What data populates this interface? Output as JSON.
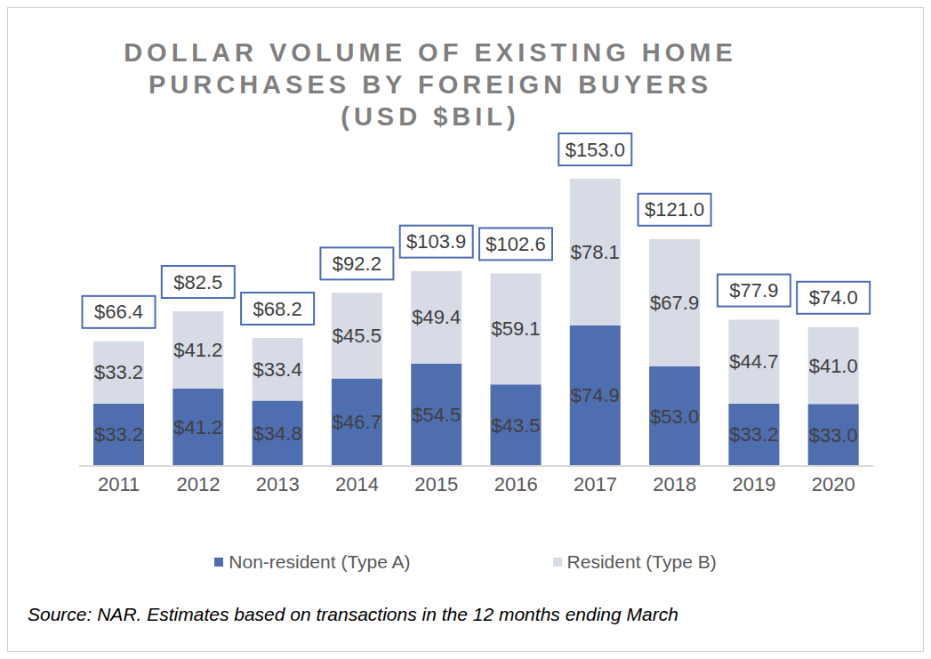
{
  "chart_data": {
    "type": "bar",
    "title": "DOLLAR VOLUME OF EXISTING HOME PURCHASES BY FOREIGN BUYERS (USD $BIL)",
    "categories": [
      "2011",
      "2012",
      "2013",
      "2014",
      "2015",
      "2016",
      "2017",
      "2018",
      "2019",
      "2020"
    ],
    "stacked": true,
    "data_labels": true,
    "tick_labels": "x",
    "legend": "bottom",
    "series": [
      {
        "name": "Non-resident (Type A)",
        "color": "#4e6eb0",
        "values": [
          33.2,
          41.2,
          34.8,
          46.7,
          54.5,
          43.5,
          74.9,
          53.0,
          33.2,
          33.0
        ],
        "value_labels": [
          "$33.2",
          "$41.2",
          "$34.8",
          "$46.7",
          "$54.5",
          "$43.5",
          "$74.9",
          "$53.0",
          "$33.2",
          "$33.0"
        ]
      },
      {
        "name": "Resident (Type B)",
        "color": "#d6dbe5",
        "values": [
          33.2,
          41.2,
          33.4,
          45.5,
          49.4,
          59.1,
          78.1,
          67.9,
          44.7,
          41.0
        ],
        "value_labels": [
          "$33.2",
          "$41.2",
          "$33.4",
          "$45.5",
          "$49.4",
          "$59.1",
          "$78.1",
          "$67.9",
          "$44.7",
          "$41.0"
        ]
      }
    ],
    "totals": [
      66.4,
      82.5,
      68.2,
      92.2,
      103.9,
      102.6,
      153.0,
      121.0,
      77.9,
      74.0
    ],
    "totals_labels": [
      "$66.4",
      "$82.5",
      "$68.2",
      "$92.2",
      "$103.9",
      "$102.6",
      "$153.0",
      "$121.0",
      "$77.9",
      "$74.0"
    ],
    "source": "Source: NAR. Estimates based on transactions in the 12 months ending March"
  }
}
